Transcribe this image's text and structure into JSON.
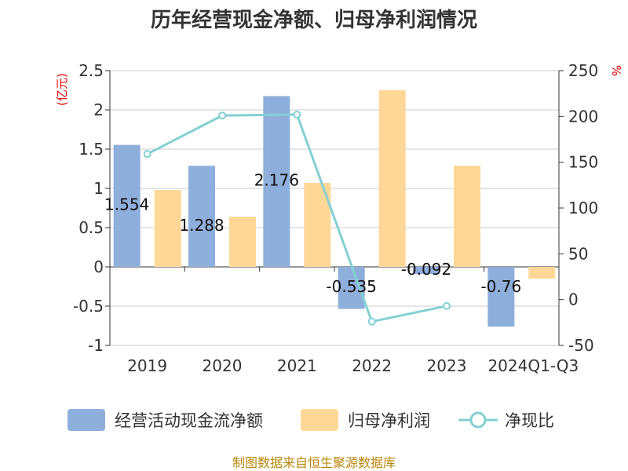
{
  "chart_data": {
    "type": "bar",
    "title": "历年经营现金净额、归母净利润情况",
    "categories": [
      "2019",
      "2020",
      "2021",
      "2022",
      "2023",
      "2024Q1-Q3"
    ],
    "series": [
      {
        "name": "经营活动现金流净额",
        "type": "bar",
        "axis": "left",
        "values": [
          1.554,
          1.288,
          2.176,
          -0.535,
          -0.092,
          -0.76
        ],
        "labels": [
          "1.554",
          "1.288",
          "2.176",
          "-0.535",
          "-0.092",
          "-0.76"
        ]
      },
      {
        "name": "归母净利润",
        "type": "bar",
        "axis": "left",
        "values": [
          0.98,
          0.64,
          1.07,
          2.25,
          1.29,
          -0.15
        ]
      },
      {
        "name": "净现比",
        "type": "line",
        "axis": "right",
        "values": [
          159,
          201,
          202,
          -24,
          -7,
          null
        ]
      }
    ],
    "y_left": {
      "unit": "(亿元)",
      "min": -1,
      "max": 2.5,
      "ticks": [
        "2.5",
        "2",
        "1.5",
        "1",
        "0.5",
        "0",
        "-0.5",
        "-1"
      ]
    },
    "y_right": {
      "unit": "%",
      "min": -50,
      "max": 250,
      "ticks": [
        "250",
        "200",
        "150",
        "100",
        "50",
        "0",
        "-50"
      ]
    },
    "grid": true,
    "legend_position": "bottom",
    "colors": {
      "cash_flow": "#8eaedb",
      "net_profit": "#ffd797",
      "ratio": "#84d0d3"
    }
  },
  "footer": {
    "source": "制图数据来自恒生聚源数据库"
  }
}
